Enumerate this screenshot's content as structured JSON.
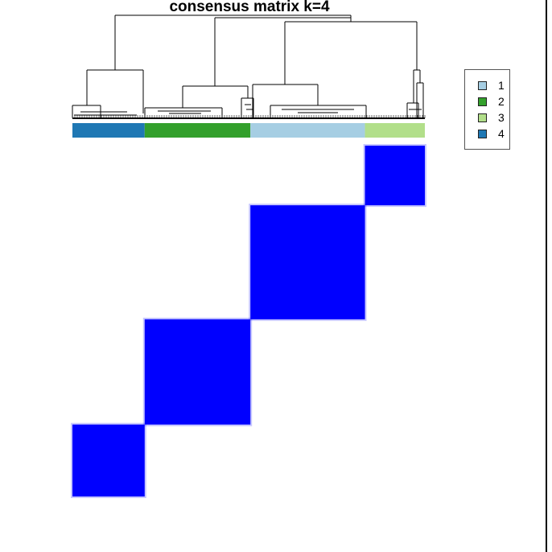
{
  "chart_data": {
    "type": "heatmap",
    "title": "consensus matrix k=4",
    "k": 4,
    "matrix_value_color": "#0000ff",
    "background_color": "#ffffff",
    "cluster_order": [
      4,
      2,
      1,
      3
    ],
    "cluster_sizes": [
      0.205,
      0.3,
      0.325,
      0.17
    ],
    "cluster_colors": {
      "1": "#a6cee3",
      "2": "#33a02c",
      "3": "#b2df8a",
      "4": "#1f78b4"
    },
    "consensus_blocks": [
      {
        "cluster": "4",
        "consensus": 1.0
      },
      {
        "cluster": "2",
        "consensus": 1.0
      },
      {
        "cluster": "1",
        "consensus": 1.0
      },
      {
        "cluster": "3",
        "consensus": 1.0
      }
    ],
    "legend": {
      "placement": "top-right",
      "entries": [
        {
          "label": "1",
          "color": "#a6cee3"
        },
        {
          "label": "2",
          "color": "#33a02c"
        },
        {
          "label": "3",
          "color": "#b2df8a"
        },
        {
          "label": "4",
          "color": "#1f78b4"
        }
      ]
    }
  }
}
